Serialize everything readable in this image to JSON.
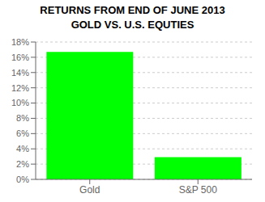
{
  "chart_data": {
    "type": "bar",
    "title": "RETURNS FROM END OF JUNE 2013",
    "subtitle": "GOLD VS. U.S. EQUTIES",
    "categories": [
      "Gold",
      "S&P 500"
    ],
    "values": [
      16.7,
      2.9
    ],
    "color": "#00ff00",
    "ylim": [
      0,
      18
    ],
    "yticks": [
      {
        "value": 0,
        "label": "0%"
      },
      {
        "value": 2,
        "label": "2%"
      },
      {
        "value": 4,
        "label": "4%"
      },
      {
        "value": 6,
        "label": "6%"
      },
      {
        "value": 8,
        "label": "8%"
      },
      {
        "value": 10,
        "label": "10%"
      },
      {
        "value": 12,
        "label": "12%"
      },
      {
        "value": 14,
        "label": "14%"
      },
      {
        "value": 16,
        "label": "16%"
      },
      {
        "value": 18,
        "label": "18%"
      }
    ],
    "grid": true
  }
}
